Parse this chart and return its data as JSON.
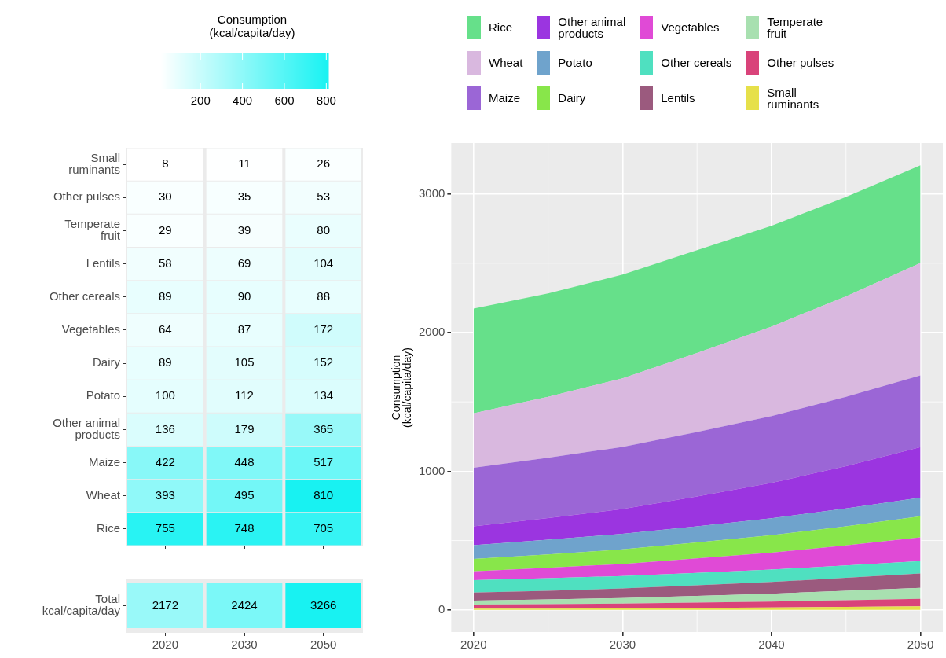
{
  "chart_data": [
    {
      "type": "heatmap",
      "categories": [
        "2020",
        "2030",
        "2050"
      ],
      "y_categories": [
        "Small\nruminants",
        "Other pulses",
        "Temperate\nfruit",
        "Lentils",
        "Other cereals",
        "Vegetables",
        "Dairy",
        "Potato",
        "Other animal\nproducts",
        "Maize",
        "Wheat",
        "Rice"
      ],
      "cells": [
        [
          8,
          11,
          26
        ],
        [
          30,
          35,
          53
        ],
        [
          29,
          39,
          80
        ],
        [
          58,
          69,
          104
        ],
        [
          89,
          90,
          88
        ],
        [
          64,
          87,
          172
        ],
        [
          89,
          105,
          152
        ],
        [
          100,
          112,
          134
        ],
        [
          136,
          179,
          365
        ],
        [
          422,
          448,
          517
        ],
        [
          393,
          495,
          810
        ],
        [
          755,
          748,
          705
        ]
      ],
      "clabel": "Consumption\n(kcal/capita/day)",
      "clim": [
        8,
        810
      ],
      "cticks": [
        200,
        400,
        600,
        800
      ],
      "color": "#18f2f2",
      "data_labels": true,
      "tick_labels": "y"
    },
    {
      "type": "heatmap",
      "categories": [
        "2020",
        "2030",
        "2050"
      ],
      "y_categories": [
        "Total\nkcal/capita/day"
      ],
      "cells": [
        [
          2172,
          2424,
          3266
        ]
      ],
      "color": "#18f2f2",
      "data_labels": true
    },
    {
      "type": "area",
      "stacked": true,
      "x": [
        2020,
        2025,
        2030,
        2035,
        2040,
        2045,
        2050
      ],
      "series": [
        {
          "name": "Small\nruminants",
          "color": "#e6e04a",
          "values": [
            8,
            9,
            11,
            14,
            17,
            21,
            26
          ]
        },
        {
          "name": "Other pulses",
          "color": "#d9437a",
          "values": [
            30,
            32,
            35,
            39,
            43,
            48,
            53
          ]
        },
        {
          "name": "Temperate\nfruit",
          "color": "#a8e0b0",
          "values": [
            29,
            34,
            39,
            48,
            57,
            68,
            80
          ]
        },
        {
          "name": "Lentils",
          "color": "#9b5a7e",
          "values": [
            58,
            63,
            69,
            76,
            84,
            94,
            104
          ]
        },
        {
          "name": "Other cereals",
          "color": "#4fe0c0",
          "values": [
            89,
            90,
            90,
            90,
            89,
            89,
            88
          ]
        },
        {
          "name": "Vegetables",
          "color": "#e04ad6",
          "values": [
            64,
            75,
            87,
            104,
            122,
            145,
            172
          ]
        },
        {
          "name": "Dairy",
          "color": "#88e64a",
          "values": [
            89,
            97,
            105,
            115,
            126,
            138,
            152
          ]
        },
        {
          "name": "Potato",
          "color": "#6fa3cc",
          "values": [
            100,
            106,
            112,
            117,
            123,
            128,
            134
          ]
        },
        {
          "name": "Other animal\nproducts",
          "color": "#9b35e0",
          "values": [
            136,
            156,
            179,
            215,
            255,
            305,
            365
          ]
        },
        {
          "name": "Maize",
          "color": "#9b66d6",
          "values": [
            422,
            435,
            448,
            465,
            482,
            500,
            517
          ]
        },
        {
          "name": "Wheat",
          "color": "#d9b8df",
          "values": [
            393,
            440,
            495,
            570,
            645,
            725,
            810
          ]
        },
        {
          "name": "Rice",
          "color": "#66e08a",
          "values": [
            755,
            745,
            748,
            740,
            727,
            716,
            705
          ]
        }
      ],
      "xlim": [
        2018.5,
        2051.5
      ],
      "ylim": [
        -160,
        3366
      ],
      "xticks": [
        2020,
        2030,
        2040,
        2050
      ],
      "yticks": [
        0,
        1000,
        2000,
        3000
      ],
      "ylabel": "Consumption\n(kcal/capita/day)",
      "grid": true,
      "legend": "top"
    }
  ]
}
